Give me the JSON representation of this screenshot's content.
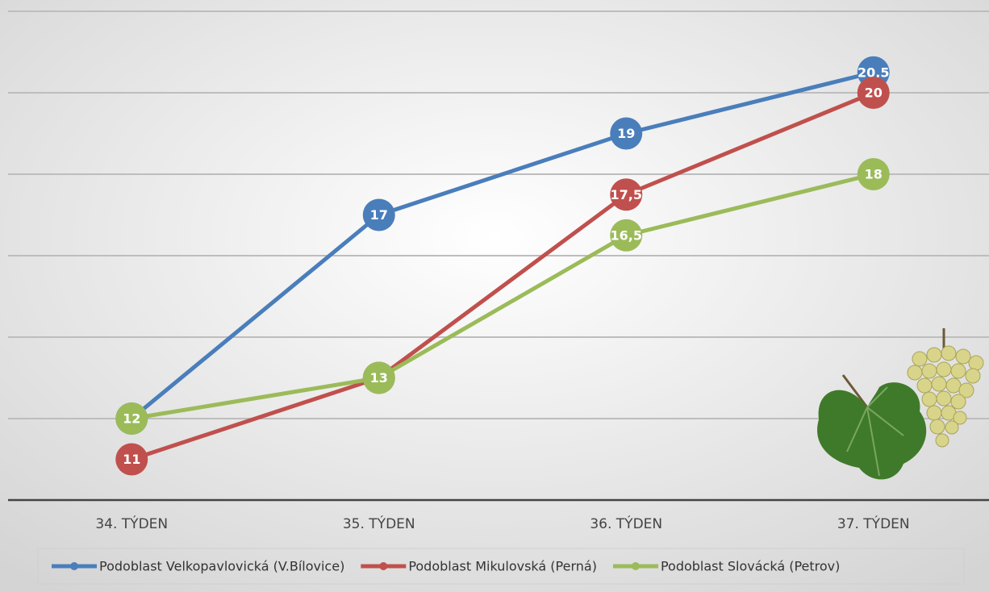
{
  "chart_data": {
    "type": "line",
    "categories": [
      "34. TÝDEN",
      "35. TÝDEN",
      "36. TÝDEN",
      "37. TÝDEN"
    ],
    "series": [
      {
        "name": "Podoblast Velkopavlovická (V.Bílovice)",
        "color": "#4a7ebb",
        "values": [
          12,
          17,
          19,
          20.5
        ],
        "value_labels": [
          "12",
          "17",
          "19",
          "20,5"
        ]
      },
      {
        "name": "Podoblast Mikulovská (Perná)",
        "color": "#c0504d",
        "values": [
          11,
          13,
          17.5,
          20
        ],
        "value_labels": [
          "11",
          "13",
          "17,5",
          "20"
        ]
      },
      {
        "name": "Podoblast Slovácká (Petrov)",
        "color": "#9bbb59",
        "values": [
          12,
          13,
          16.5,
          18
        ],
        "value_labels": [
          "12",
          "13",
          "16,5",
          "18"
        ]
      }
    ],
    "ylim": [
      10,
      22
    ],
    "yticks": [
      10,
      12,
      14,
      16,
      18,
      20,
      22
    ],
    "grid": true
  }
}
